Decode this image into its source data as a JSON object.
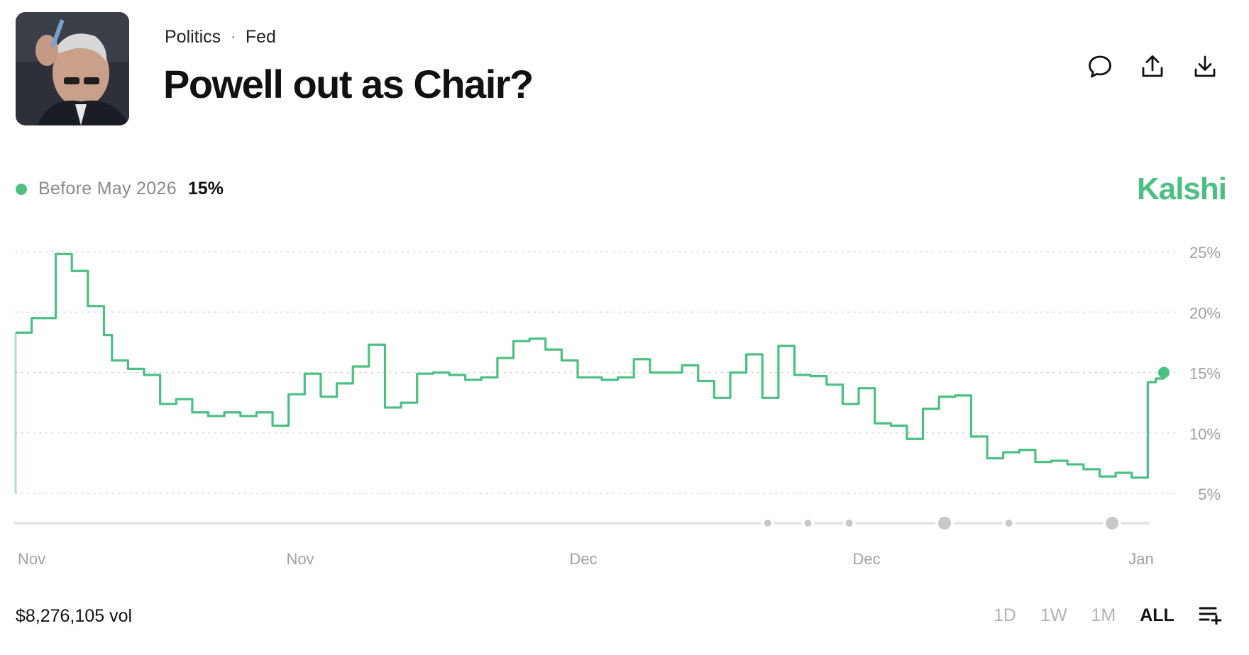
{
  "header": {
    "breadcrumb": [
      "Politics",
      "Fed"
    ],
    "title": "Powell out as Chair?",
    "image_icon": "portrait-photo",
    "actions": [
      {
        "name": "comment-button",
        "icon": "speech-bubble-icon"
      },
      {
        "name": "share-button",
        "icon": "share-upload-icon"
      },
      {
        "name": "download-button",
        "icon": "download-icon"
      }
    ]
  },
  "legend": {
    "label": "Before May 2026",
    "value": "15%",
    "color": "#4cbf82"
  },
  "brand": {
    "text": "Kalshi",
    "color": "#4cbf82"
  },
  "footer": {
    "volume": "$8,276,105 vol",
    "ranges": [
      "1D",
      "1W",
      "1M",
      "ALL"
    ],
    "active_range": "ALL",
    "list_icon": "list-add-icon"
  },
  "chart_data": {
    "type": "line",
    "step": true,
    "ylim": [
      5,
      25
    ],
    "yticks": [
      5,
      10,
      15,
      20,
      25
    ],
    "ytick_labels": [
      "5%",
      "10%",
      "15%",
      "20%",
      "25%"
    ],
    "xtick_labels": [
      "Nov",
      "Nov",
      "Dec",
      "Dec",
      "Jan"
    ],
    "grid": true,
    "series": [
      {
        "name": "Before May 2026",
        "color": "#4cbf82",
        "values": [
          18.3,
          18.3,
          19.5,
          19.5,
          19.5,
          24.8,
          24.8,
          23.4,
          23.4,
          20.5,
          20.5,
          18.1,
          16.0,
          16.0,
          15.3,
          15.3,
          14.8,
          14.8,
          12.4,
          12.4,
          12.8,
          12.8,
          11.7,
          11.7,
          11.4,
          11.4,
          11.7,
          11.7,
          11.4,
          11.4,
          11.7,
          11.7,
          10.6,
          10.6,
          13.2,
          13.2,
          14.9,
          14.9,
          13.0,
          13.0,
          14.1,
          14.1,
          15.5,
          15.5,
          17.3,
          17.3,
          12.1,
          12.1,
          12.5,
          12.5,
          14.9,
          14.9,
          15.0,
          15.0,
          14.8,
          14.8,
          14.4,
          14.4,
          14.6,
          14.6,
          16.2,
          16.2,
          17.6,
          17.6,
          17.8,
          17.8,
          16.9,
          16.9,
          16.0,
          16.0,
          14.6,
          14.6,
          14.6,
          14.4,
          14.4,
          14.6,
          14.6,
          16.1,
          16.1,
          15.0,
          15.0,
          15.0,
          15.0,
          15.6,
          15.6,
          14.3,
          14.3,
          12.9,
          12.9,
          15.0,
          15.0,
          16.5,
          16.5,
          12.9,
          12.9,
          17.2,
          17.2,
          14.8,
          14.8,
          14.7,
          14.7,
          14.0,
          14.0,
          12.4,
          12.4,
          13.7,
          13.7,
          10.8,
          10.8,
          10.6,
          10.6,
          9.5,
          9.5,
          12.0,
          12.0,
          13.0,
          13.0,
          13.1,
          13.1,
          9.7,
          9.7,
          7.9,
          7.9,
          8.4,
          8.4,
          8.6,
          8.6,
          7.6,
          7.6,
          7.7,
          7.7,
          7.4,
          7.4,
          7.0,
          7.0,
          6.4,
          6.4,
          6.7,
          6.7,
          6.3,
          6.3,
          14.2,
          14.5,
          15.0
        ]
      }
    ],
    "event_markers": [
      {
        "position": 0.655,
        "size": "small"
      },
      {
        "position": 0.69,
        "size": "small"
      },
      {
        "position": 0.726,
        "size": "small"
      },
      {
        "position": 0.809,
        "size": "large"
      },
      {
        "position": 0.865,
        "size": "small"
      },
      {
        "position": 0.955,
        "size": "large"
      }
    ]
  }
}
